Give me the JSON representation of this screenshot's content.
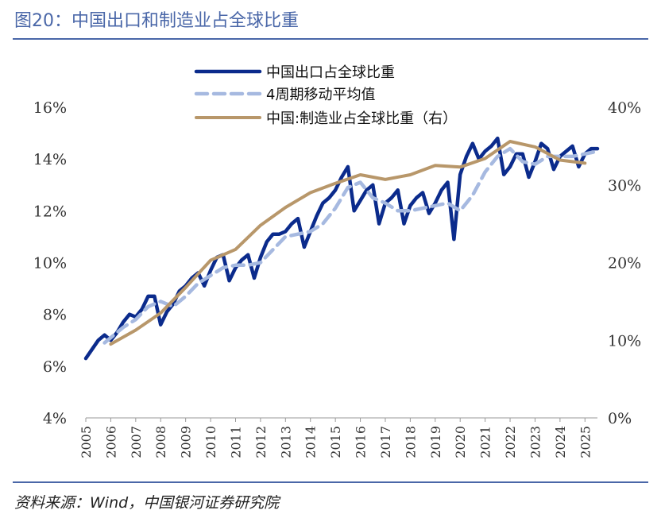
{
  "title": "图20：中国出口和制造业占全球比重",
  "source": "资料来源：Wind，中国银河证券研究院",
  "colors": {
    "export": "#0b2b8c",
    "ma4": "#a6b9e0",
    "mfg": "#b8976a",
    "accent": "#4a67a8"
  },
  "chart_data": {
    "type": "line",
    "x_ticks": [
      "2005",
      "2006",
      "2007",
      "2008",
      "2009",
      "2010",
      "2011",
      "2012",
      "2013",
      "2014",
      "2015",
      "2016",
      "2017",
      "2018",
      "2019",
      "2020",
      "2021",
      "2022",
      "2023",
      "2024",
      "2025"
    ],
    "y_left": {
      "min": 4,
      "max": 16,
      "ticks": [
        "4%",
        "6%",
        "8%",
        "10%",
        "12%",
        "14%",
        "16%"
      ]
    },
    "y_right": {
      "min": 0,
      "max": 40,
      "ticks": [
        "0%",
        "10%",
        "20%",
        "30%",
        "40%"
      ]
    },
    "grid": false,
    "legend_position": "top-center",
    "series": [
      {
        "name": "中国出口占全球比重",
        "axis": "left",
        "style": "solid",
        "x": [
          2005.0,
          2005.5,
          2005.75,
          2006.0,
          2006.25,
          2006.5,
          2006.75,
          2007.0,
          2007.25,
          2007.5,
          2007.75,
          2008.0,
          2008.25,
          2008.5,
          2008.75,
          2009.0,
          2009.25,
          2009.5,
          2009.75,
          2010.0,
          2010.25,
          2010.5,
          2010.75,
          2011.0,
          2011.25,
          2011.5,
          2011.75,
          2012.0,
          2012.25,
          2012.5,
          2012.75,
          2013.0,
          2013.25,
          2013.5,
          2013.75,
          2014.0,
          2014.25,
          2014.5,
          2014.75,
          2015.0,
          2015.25,
          2015.5,
          2015.75,
          2016.0,
          2016.25,
          2016.5,
          2016.75,
          2017.0,
          2017.25,
          2017.5,
          2017.75,
          2018.0,
          2018.25,
          2018.5,
          2018.75,
          2019.0,
          2019.25,
          2019.5,
          2019.75,
          2020.0,
          2020.25,
          2020.5,
          2020.75,
          2021.0,
          2021.25,
          2021.5,
          2021.75,
          2022.0,
          2022.25,
          2022.5,
          2022.75,
          2023.0,
          2023.25,
          2023.5,
          2023.75,
          2024.0,
          2024.25,
          2024.5,
          2024.75,
          2025.0,
          2025.25,
          2025.5
        ],
        "values": [
          6.3,
          7.0,
          7.2,
          7.0,
          7.3,
          7.7,
          8.0,
          7.9,
          8.2,
          8.7,
          8.7,
          7.6,
          8.1,
          8.4,
          8.9,
          9.1,
          9.4,
          9.6,
          9.1,
          9.7,
          10.2,
          10.3,
          9.3,
          9.8,
          10.1,
          10.3,
          9.4,
          10.2,
          10.8,
          11.1,
          11.1,
          11.2,
          11.5,
          11.7,
          10.6,
          11.2,
          11.8,
          12.3,
          12.5,
          12.8,
          13.3,
          13.7,
          12.0,
          12.4,
          12.8,
          13.0,
          11.5,
          12.3,
          12.5,
          12.8,
          11.5,
          12.2,
          12.5,
          12.7,
          11.9,
          12.3,
          12.8,
          13.1,
          10.9,
          13.4,
          14.1,
          14.6,
          14.0,
          14.3,
          14.5,
          14.8,
          13.4,
          13.7,
          14.2,
          14.2,
          13.3,
          13.9,
          14.6,
          14.4,
          13.6,
          14.1,
          14.3,
          14.5,
          13.7,
          14.2,
          14.4,
          14.4
        ]
      },
      {
        "name": "4周期移动平均值",
        "axis": "left",
        "style": "dashed",
        "x": [
          2005.75,
          2006.0,
          2006.5,
          2007.0,
          2007.5,
          2008.0,
          2008.5,
          2009.0,
          2009.5,
          2010.0,
          2010.5,
          2011.0,
          2011.5,
          2012.0,
          2012.5,
          2013.0,
          2013.5,
          2014.0,
          2014.5,
          2015.0,
          2015.5,
          2016.0,
          2016.5,
          2017.0,
          2017.5,
          2018.0,
          2018.5,
          2019.0,
          2019.5,
          2020.0,
          2020.5,
          2021.0,
          2021.5,
          2022.0,
          2022.5,
          2023.0,
          2023.5,
          2024.0,
          2024.5,
          2025.0,
          2025.5
        ],
        "values": [
          6.9,
          7.1,
          7.5,
          7.8,
          8.3,
          8.5,
          8.3,
          8.7,
          9.2,
          9.5,
          9.8,
          9.9,
          9.9,
          10.0,
          10.5,
          11.0,
          11.1,
          11.2,
          11.5,
          12.1,
          12.9,
          13.1,
          12.5,
          12.3,
          12.0,
          12.0,
          12.1,
          12.2,
          12.3,
          12.0,
          12.6,
          13.5,
          14.1,
          14.4,
          13.9,
          13.8,
          14.1,
          14.1,
          14.1,
          14.2,
          14.3
        ]
      },
      {
        "name": "中国:制造业占全球比重（右）",
        "axis": "right",
        "style": "solid",
        "x": [
          2006.0,
          2007.0,
          2008.0,
          2009.0,
          2010.0,
          2011.0,
          2012.0,
          2013.0,
          2014.0,
          2015.0,
          2016.0,
          2017.0,
          2018.0,
          2019.0,
          2020.0,
          2021.0,
          2022.0,
          2023.0,
          2024.0,
          2025.0
        ],
        "values": [
          9.5,
          11.3,
          13.5,
          16.8,
          20.3,
          21.7,
          24.8,
          27.1,
          29.0,
          30.2,
          31.3,
          30.7,
          31.3,
          32.5,
          32.3,
          33.4,
          35.6,
          34.9,
          33.2,
          32.8
        ]
      }
    ]
  }
}
